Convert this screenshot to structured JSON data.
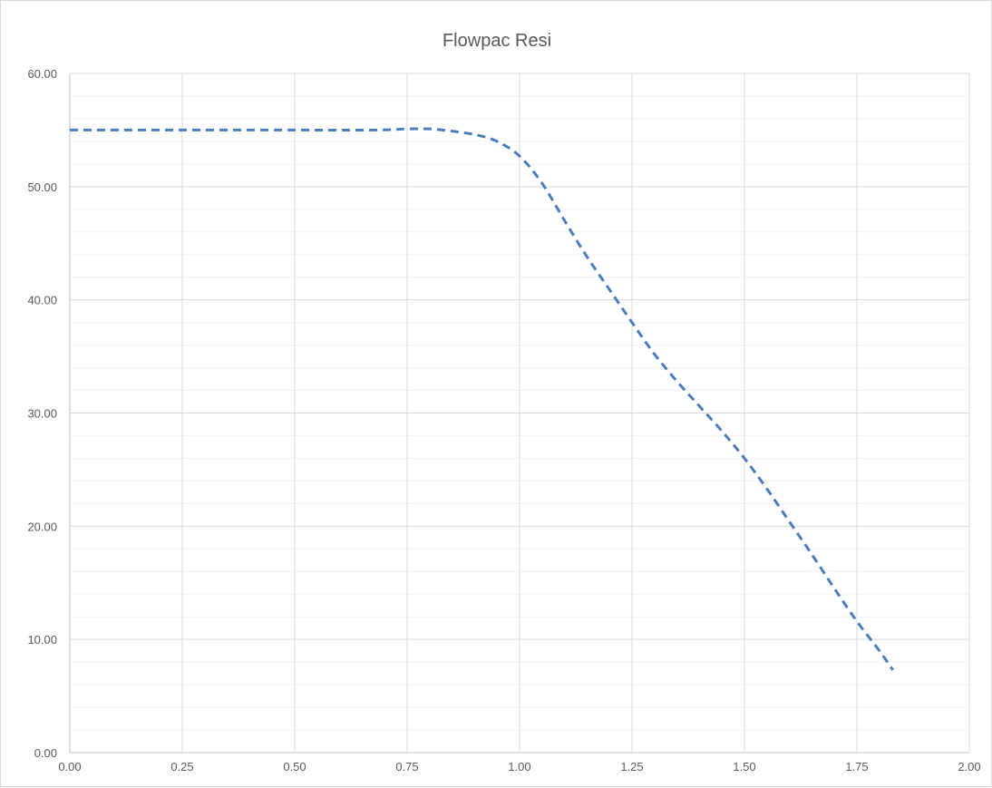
{
  "chart_data": {
    "type": "line",
    "title": "Flowpac Resi",
    "xlabel": "",
    "ylabel": "",
    "xlim": [
      0,
      2
    ],
    "ylim": [
      0,
      60
    ],
    "x_ticks": [
      0,
      0.25,
      0.5,
      0.75,
      1.0,
      1.25,
      1.5,
      1.75,
      2.0
    ],
    "x_tick_labels": [
      "0.00",
      "0.25",
      "0.50",
      "0.75",
      "1.00",
      "1.25",
      "1.50",
      "1.75",
      "2.00"
    ],
    "y_ticks": [
      0,
      10,
      20,
      30,
      40,
      50,
      60
    ],
    "y_tick_labels": [
      "0.00",
      "10.00",
      "20.00",
      "30.00",
      "40.00",
      "50.00",
      "60.00"
    ],
    "y_minor_step": 2,
    "grid": true,
    "legend": "none",
    "line_color": "#4a7ebb",
    "line_style": "dashed",
    "series": [
      {
        "x": [
          0,
          0.25,
          0.5,
          0.68,
          0.75,
          0.8,
          0.85,
          0.9,
          0.95,
          1.0,
          1.05,
          1.1,
          1.15,
          1.2,
          1.25,
          1.3,
          1.35,
          1.4,
          1.45,
          1.5,
          1.55,
          1.6,
          1.65,
          1.7,
          1.75,
          1.8,
          1.83
        ],
        "y": [
          55.0,
          55.0,
          55.0,
          55.0,
          55.1,
          55.1,
          54.9,
          54.6,
          54.0,
          52.7,
          50.3,
          47.0,
          43.8,
          40.9,
          38.0,
          35.2,
          32.8,
          30.6,
          28.4,
          26.0,
          23.3,
          20.4,
          17.5,
          14.5,
          11.6,
          9.0,
          7.3
        ]
      }
    ]
  }
}
